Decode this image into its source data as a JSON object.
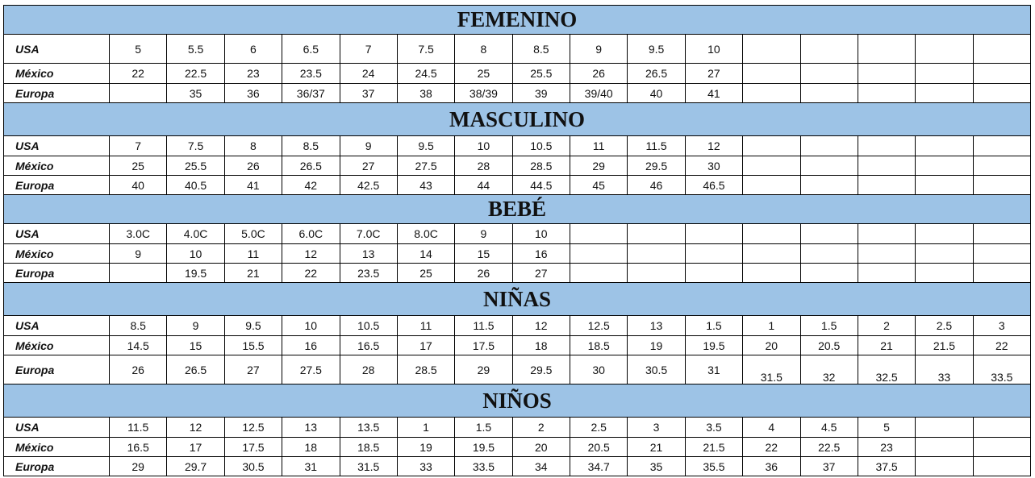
{
  "sections": [
    {
      "title": "FEMENINO",
      "rows": [
        {
          "label": "USA",
          "cells": [
            "5",
            "5.5",
            "6",
            "6.5",
            "7",
            "7.5",
            "8",
            "8.5",
            "9",
            "9.5",
            "10",
            "",
            "",
            "",
            "",
            ""
          ]
        },
        {
          "label": "México",
          "cells": [
            "22",
            "22.5",
            "23",
            "23.5",
            "24",
            "24.5",
            "25",
            "25.5",
            "26",
            "26.5",
            "27",
            "",
            "",
            "",
            "",
            ""
          ]
        },
        {
          "label": "Europa",
          "cells": [
            "",
            "35",
            "36",
            "36/37",
            "37",
            "38",
            "38/39",
            "39",
            "39/40",
            "40",
            "41",
            "",
            "",
            "",
            "",
            ""
          ]
        }
      ]
    },
    {
      "title": "MASCULINO",
      "rows": [
        {
          "label": "USA",
          "cells": [
            "7",
            "7.5",
            "8",
            "8.5",
            "9",
            "9.5",
            "10",
            "10.5",
            "11",
            "11.5",
            "12",
            "",
            "",
            "",
            "",
            ""
          ]
        },
        {
          "label": "México",
          "cells": [
            "25",
            "25.5",
            "26",
            "26.5",
            "27",
            "27.5",
            "28",
            "28.5",
            "29",
            "29.5",
            "30",
            "",
            "",
            "",
            "",
            ""
          ]
        },
        {
          "label": "Europa",
          "cells": [
            "40",
            "40.5",
            "41",
            "42",
            "42.5",
            "43",
            "44",
            "44.5",
            "45",
            "46",
            "46.5",
            "",
            "",
            "",
            "",
            ""
          ]
        }
      ]
    },
    {
      "title": "BEBÉ",
      "rows": [
        {
          "label": "USA",
          "cells": [
            "3.0C",
            "4.0C",
            "5.0C",
            "6.0C",
            "7.0C",
            "8.0C",
            "9",
            "10",
            "",
            "",
            "",
            "",
            "",
            "",
            "",
            ""
          ]
        },
        {
          "label": "México",
          "cells": [
            "9",
            "10",
            "11",
            "12",
            "13",
            "14",
            "15",
            "16",
            "",
            "",
            "",
            "",
            "",
            "",
            "",
            ""
          ]
        },
        {
          "label": "Europa",
          "cells": [
            "",
            "19.5",
            "21",
            "22",
            "23.5",
            "25",
            "26",
            "27",
            "",
            "",
            "",
            "",
            "",
            "",
            "",
            ""
          ]
        }
      ]
    },
    {
      "title": "NIÑAS",
      "rows": [
        {
          "label": "USA",
          "cells": [
            "8.5",
            "9",
            "9.5",
            "10",
            "10.5",
            "11",
            "11.5",
            "12",
            "12.5",
            "13",
            "1.5",
            "1",
            "1.5",
            "2",
            "2.5",
            "3"
          ]
        },
        {
          "label": "México",
          "cells": [
            "14.5",
            "15",
            "15.5",
            "16",
            "16.5",
            "17",
            "17.5",
            "18",
            "18.5",
            "19",
            "19.5",
            "20",
            "20.5",
            "21",
            "21.5",
            "22"
          ]
        },
        {
          "label": "Europa",
          "cells": [
            "26",
            "26.5",
            "27",
            "27.5",
            "28",
            "28.5",
            "29",
            "29.5",
            "30",
            "30.5",
            "31",
            "31.5",
            "32",
            "32.5",
            "33",
            "33.5"
          ]
        }
      ]
    },
    {
      "title": "NIÑOS",
      "rows": [
        {
          "label": "USA",
          "cells": [
            "11.5",
            "12",
            "12.5",
            "13",
            "13.5",
            "1",
            "1.5",
            "2",
            "2.5",
            "3",
            "3.5",
            "4",
            "4.5",
            "5",
            "",
            ""
          ]
        },
        {
          "label": "México",
          "cells": [
            "16.5",
            "17",
            "17.5",
            "18",
            "18.5",
            "19",
            "19.5",
            "20",
            "20.5",
            "21",
            "21.5",
            "22",
            "22.5",
            "23",
            "",
            ""
          ]
        },
        {
          "label": "Europa",
          "cells": [
            "29",
            "29.7",
            "30.5",
            "31",
            "31.5",
            "33",
            "33.5",
            "34",
            "34.7",
            "35",
            "35.5",
            "36",
            "37",
            "37.5",
            "",
            ""
          ]
        }
      ]
    }
  ],
  "colors": {
    "section_header_bg": "#9dc3e6",
    "grid": "#000000"
  }
}
